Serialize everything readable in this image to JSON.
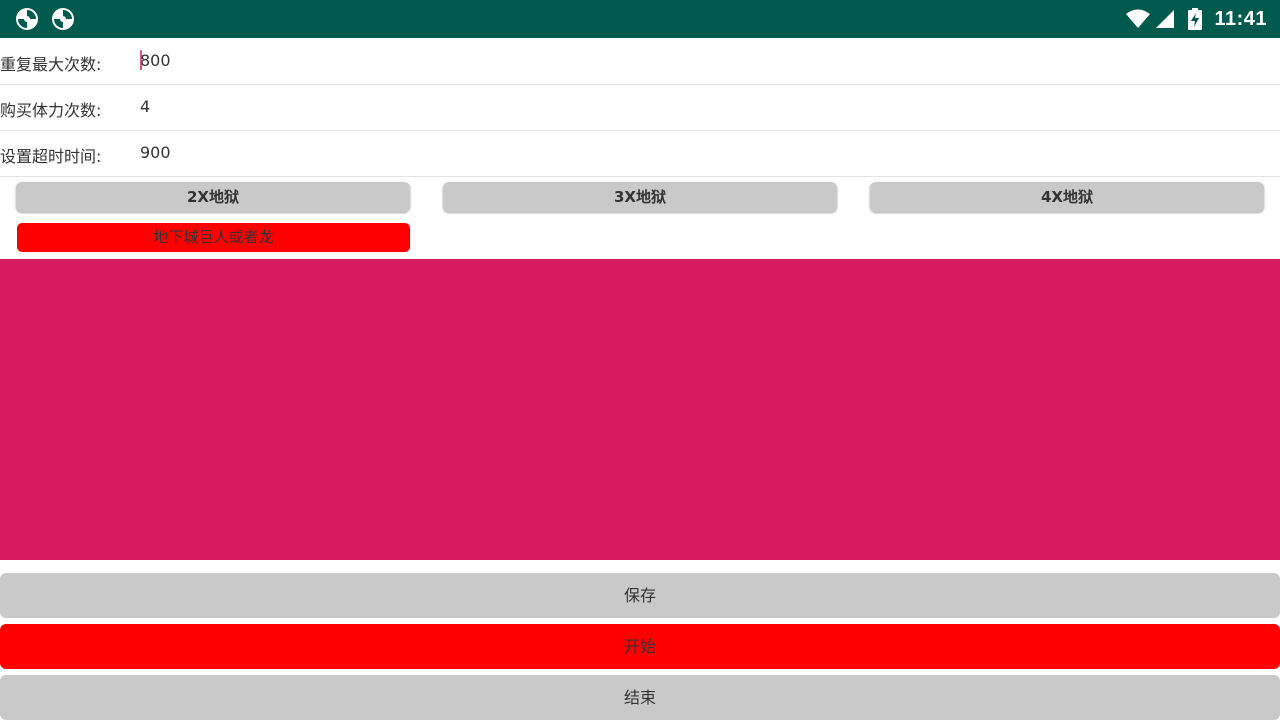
{
  "status_bar": {
    "time": "11:41",
    "icons": [
      "notification-app-icon",
      "notification-app-icon",
      "wifi-icon",
      "cell-signal-icon",
      "battery-charging-icon"
    ]
  },
  "settings": [
    {
      "label": "重复最大次数:",
      "value": "800"
    },
    {
      "label": "购买体力次数:",
      "value": "4"
    },
    {
      "label": "设置超时时间:",
      "value": "900"
    }
  ],
  "modes": [
    {
      "label": "2X地狱"
    },
    {
      "label": "3X地狱"
    },
    {
      "label": "4X地狱"
    }
  ],
  "dungeon": {
    "label": "地下城巨人或者龙"
  },
  "actions": {
    "save": "保存",
    "start": "开始",
    "stop": "结束"
  },
  "colors": {
    "status_bar": "#005a4d",
    "accent_pink": "#d81b60",
    "active_red": "#ff0000",
    "button_gray": "#c9c9c9"
  }
}
